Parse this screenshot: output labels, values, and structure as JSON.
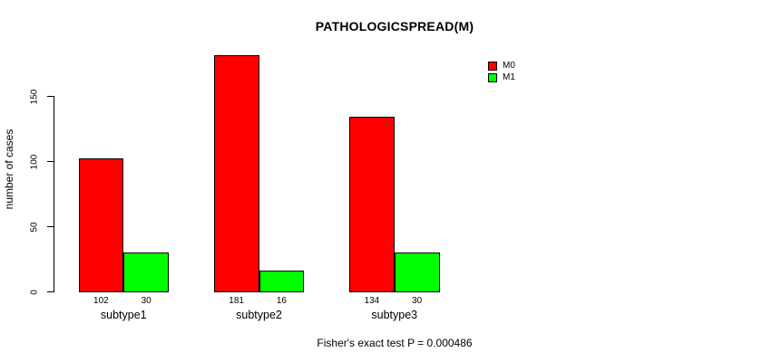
{
  "chart_data": {
    "type": "bar",
    "title": "PATHOLOGICSPREAD(M)",
    "xlabel": "",
    "ylabel": "number of cases",
    "categories": [
      "subtype1",
      "subtype2",
      "subtype3"
    ],
    "series": [
      {
        "name": "M0",
        "color": "#ff0000",
        "values": [
          102,
          181,
          134
        ]
      },
      {
        "name": "M1",
        "color": "#00ff00",
        "values": [
          30,
          16,
          30
        ]
      }
    ],
    "bar_value_labels": [
      [
        "102",
        "181",
        "134"
      ],
      [
        "30",
        "16",
        "30"
      ]
    ],
    "y_ticks": [
      0,
      50,
      100,
      150
    ],
    "ylim": [
      0,
      190
    ],
    "grid": false,
    "legend_position": "top-right-inside",
    "legend_entries": [
      "M0",
      "M1"
    ],
    "caption": "Fisher's exact test P = 0.000486"
  },
  "colors": {
    "background": "#ffffff",
    "axis": "#000000",
    "text": "#000000",
    "m0": "#ff0000",
    "m1": "#00ff00"
  }
}
